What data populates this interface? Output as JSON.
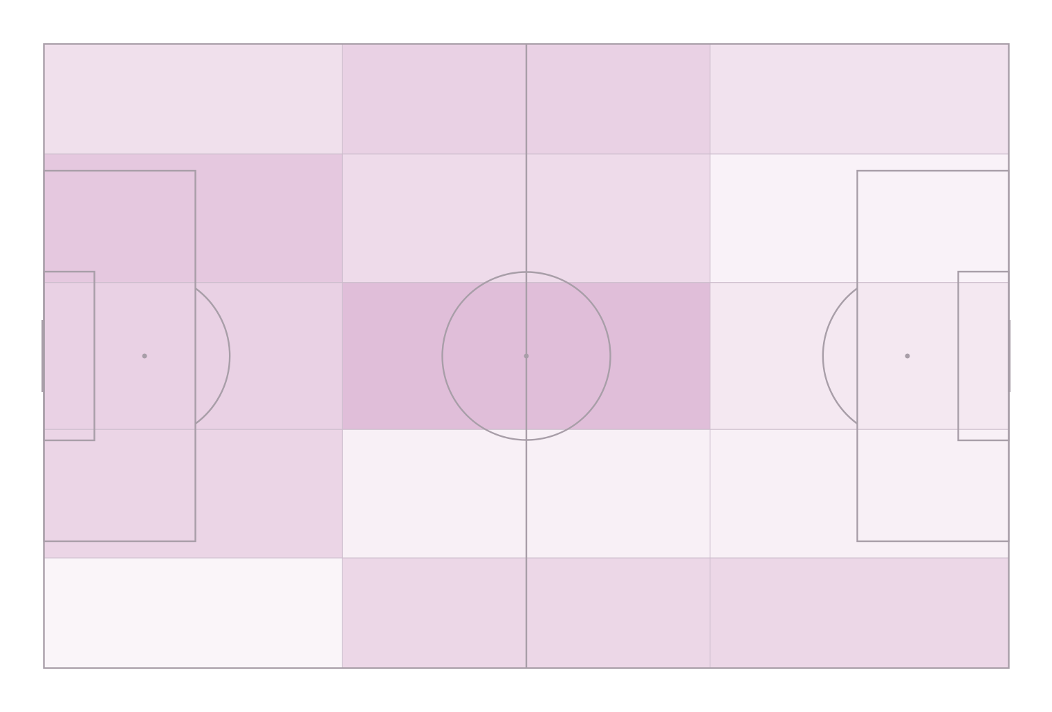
{
  "chart_data": {
    "type": "heatmap",
    "title": "",
    "xlabel": "",
    "ylabel": "",
    "pitch_length_m": 105,
    "pitch_width_m": 68,
    "x_bins_m": [
      0,
      32.5,
      52.5,
      72.5,
      105
    ],
    "y_bins_m": [
      0,
      12,
      26,
      42,
      56,
      68
    ],
    "values": [
      [
        0.15,
        0.22,
        0.22,
        0.14
      ],
      [
        0.26,
        0.17,
        0.17,
        0.06
      ],
      [
        0.22,
        0.31,
        0.31,
        0.11
      ],
      [
        0.2,
        0.07,
        0.07,
        0.07
      ],
      [
        0.05,
        0.19,
        0.19,
        0.19
      ]
    ],
    "value_range": [
      0,
      1
    ],
    "colormap": [
      "#ffffff",
      "#9b2d83"
    ],
    "line_color": "#a89ea8",
    "grid": true,
    "legend": "none"
  }
}
